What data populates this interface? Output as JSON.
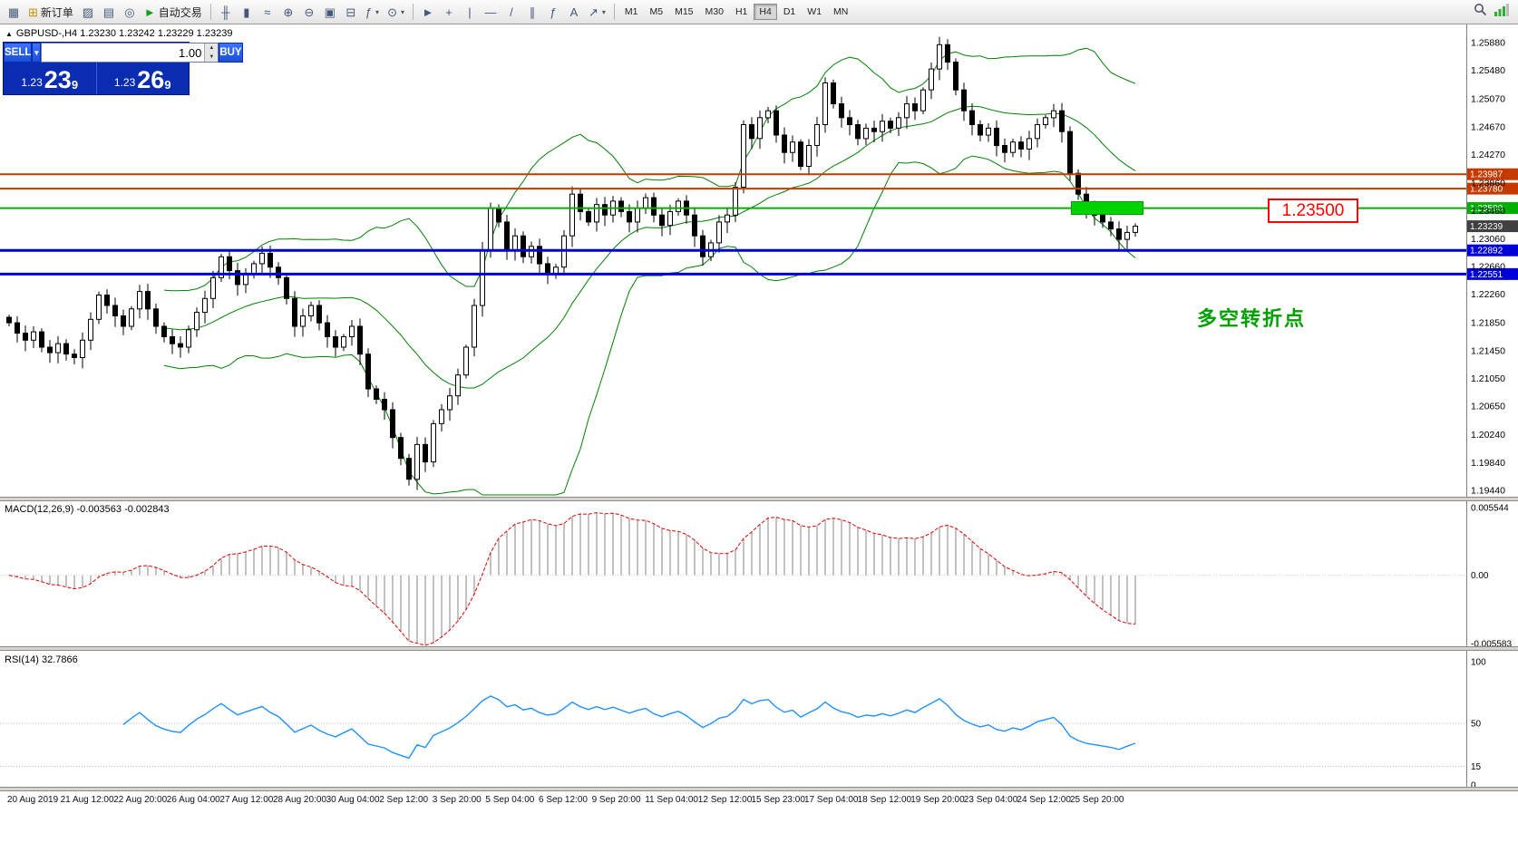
{
  "toolbar": {
    "groups": [
      {
        "items": [
          {
            "name": "new-chart",
            "glyph": "▦"
          },
          {
            "name": "new-order",
            "glyph": "⊞",
            "glyph_color": "#c79100",
            "label": "新订单"
          },
          {
            "name": "profiles",
            "glyph": "▨"
          },
          {
            "name": "market-watch",
            "glyph": "▤"
          },
          {
            "name": "navigator",
            "glyph": "◎"
          },
          {
            "name": "autotrading",
            "glyph": "►",
            "glyph_color": "#14a014",
            "label": "自动交易"
          }
        ]
      },
      {
        "items": [
          {
            "name": "ohlc-bars",
            "glyph": "╫"
          },
          {
            "name": "candlestick-chart",
            "glyph": "▮"
          },
          {
            "name": "line-chart",
            "glyph": "≈"
          },
          {
            "name": "zoom-in",
            "glyph": "⊕"
          },
          {
            "name": "zoom-out",
            "glyph": "⊖"
          },
          {
            "name": "tile-windows",
            "glyph": "▣"
          },
          {
            "name": "cascade-windows",
            "glyph": "⊟"
          },
          {
            "name": "indicators",
            "glyph": "ƒ",
            "dropdown": true
          },
          {
            "name": "periods",
            "glyph": "⊙",
            "dropdown": true
          }
        ]
      },
      {
        "items": [
          {
            "name": "cursor",
            "glyph": "►"
          },
          {
            "name": "crosshair",
            "glyph": "+"
          },
          {
            "name": "vertical-line",
            "glyph": "|"
          },
          {
            "name": "horizontal-line",
            "glyph": "—"
          },
          {
            "name": "trendline",
            "glyph": "/"
          },
          {
            "name": "equidistant-channel",
            "glyph": "∥"
          },
          {
            "name": "fibonacci",
            "glyph": "ƒ"
          },
          {
            "name": "text-label",
            "glyph": "A"
          },
          {
            "name": "arrows",
            "glyph": "↗",
            "dropdown": true
          }
        ]
      }
    ],
    "timeframes": [
      "M1",
      "M5",
      "M15",
      "M30",
      "H1",
      "H4",
      "D1",
      "W1",
      "MN"
    ],
    "active_timeframe": "H4",
    "right_icons": [
      {
        "name": "search"
      },
      {
        "name": "connection"
      }
    ]
  },
  "chart": {
    "symbol_icon": "▲",
    "symbol_header": "GBPUSD-,H4  1.23230 1.23242 1.23229 1.23239",
    "price_axis": [
      "1.25880",
      "1.25480",
      "1.25070",
      "1.24670",
      "1.24270",
      "1.23860",
      "1.23460",
      "1.23060",
      "1.22660",
      "1.22260",
      "1.21850",
      "1.21450",
      "1.21050",
      "1.20650",
      "1.20240",
      "1.19840",
      "1.19440"
    ],
    "hlines": [
      {
        "price": 1.23987,
        "label": "1.23987",
        "color": "#c63a00",
        "width": 2
      },
      {
        "price": 1.2378,
        "label": "1.23780",
        "color": "#c63a00",
        "width": 2
      },
      {
        "price": 1.235,
        "label": "1.23500",
        "color": "#00b000",
        "width": 2
      },
      {
        "price": 1.22892,
        "label": "1.22892",
        "color": "#0000d8",
        "width": 3
      },
      {
        "price": 1.22551,
        "label": "1.22551",
        "color": "#0000d8",
        "width": 3
      }
    ],
    "current_price": {
      "label": "1.23239",
      "value": 1.23239,
      "badge_color": "#404040"
    },
    "green_zone": {
      "price": 1.235
    },
    "price_box_label": "1.23500",
    "annotation": "多空转折点",
    "trade_panel": {
      "sell_label": "SELL",
      "buy_label": "BUY",
      "volume": "1.00",
      "dropdown_icon": "▼",
      "spin_up_icon": "▲",
      "spin_down_icon": "▼",
      "sell_small": "1.23",
      "sell_big": "23",
      "sell_sup": "9",
      "buy_small": "1.23",
      "buy_big": "26",
      "buy_sup": "9"
    }
  },
  "macd": {
    "label": "MACD(12,26,9) -0.003563 -0.002843",
    "scale": [
      {
        "label": "0.005544",
        "value": 0.005544
      },
      {
        "label": "0.00",
        "value": 0
      },
      {
        "label": "-0.005583",
        "value": -0.005583
      }
    ]
  },
  "rsi": {
    "label": "RSI(14) 32.7866",
    "scale": [
      {
        "label": "100",
        "value": 100
      },
      {
        "label": "50",
        "value": 50
      },
      {
        "label": "15",
        "value": 15
      },
      {
        "label": "0",
        "value": 0
      }
    ],
    "levels": [
      50,
      15
    ]
  },
  "chart_data": {
    "type": "candlestick",
    "symbol": "GBPUSD-",
    "timeframe": "H4",
    "title": "GBPUSD-,H4",
    "ohlc_display": {
      "open": "1.23230",
      "high": "1.23242",
      "low": "1.23229",
      "close": "1.23239"
    },
    "y_axis_range": [
      1.1944,
      1.2588
    ],
    "closes": [
      1.2185,
      1.217,
      1.216,
      1.2172,
      1.215,
      1.2142,
      1.2155,
      1.214,
      1.2135,
      1.216,
      1.219,
      1.2225,
      1.221,
      1.2195,
      1.218,
      1.2205,
      1.223,
      1.2205,
      1.218,
      1.2165,
      1.2155,
      1.215,
      1.2175,
      1.22,
      1.222,
      1.225,
      1.228,
      1.226,
      1.224,
      1.2255,
      1.227,
      1.2285,
      1.2265,
      1.225,
      1.222,
      1.218,
      1.2195,
      1.221,
      1.2185,
      1.2165,
      1.215,
      1.2165,
      1.218,
      1.214,
      1.209,
      1.2075,
      1.206,
      1.202,
      1.199,
      1.196,
      1.201,
      1.1985,
      1.204,
      1.206,
      1.208,
      1.211,
      1.215,
      1.221,
      1.229,
      1.235,
      1.233,
      1.229,
      1.231,
      1.228,
      1.2295,
      1.227,
      1.2255,
      1.2265,
      1.231,
      1.237,
      1.2345,
      1.233,
      1.2355,
      1.234,
      1.236,
      1.2345,
      1.233,
      1.235,
      1.2365,
      1.234,
      1.2325,
      1.2345,
      1.236,
      1.234,
      1.231,
      1.228,
      1.23,
      1.233,
      1.234,
      1.238,
      1.247,
      1.245,
      1.248,
      1.249,
      1.2455,
      1.243,
      1.2445,
      1.241,
      1.244,
      1.247,
      1.253,
      1.25,
      1.248,
      1.247,
      1.245,
      1.2465,
      1.246,
      1.2475,
      1.2465,
      1.248,
      1.25,
      1.249,
      1.252,
      1.255,
      1.2585,
      1.256,
      1.252,
      1.249,
      1.247,
      1.2455,
      1.2465,
      1.244,
      1.243,
      1.2445,
      1.2435,
      1.245,
      1.247,
      1.248,
      1.249,
      1.246,
      1.24,
      1.237,
      1.235,
      1.234,
      1.233,
      1.232,
      1.2305,
      1.2315,
      1.23239
    ],
    "indicators": {
      "bollinger": {
        "period": 20,
        "deviation": 2,
        "color": "#008000"
      },
      "macd": {
        "fast": 12,
        "slow": 26,
        "signal": 9,
        "values_display": [
          "-0.003563",
          "-0.002843"
        ]
      },
      "rsi": {
        "period": 14,
        "value_display": "32.7866"
      }
    },
    "x_axis_labels": [
      "20 Aug 2019",
      "21 Aug 12:00",
      "22 Aug 20:00",
      "26 Aug 04:00",
      "27 Aug 12:00",
      "28 Aug 20:00",
      "30 Aug 04:00",
      "2 Sep 12:00",
      "3 Sep 20:00",
      "5 Sep 04:00",
      "6 Sep 12:00",
      "9 Sep 20:00",
      "11 Sep 04:00",
      "12 Sep 12:00",
      "15 Sep 23:00",
      "17 Sep 04:00",
      "18 Sep 12:00",
      "19 Sep 20:00",
      "23 Sep 04:00",
      "24 Sep 12:00",
      "25 Sep 20:00"
    ]
  }
}
